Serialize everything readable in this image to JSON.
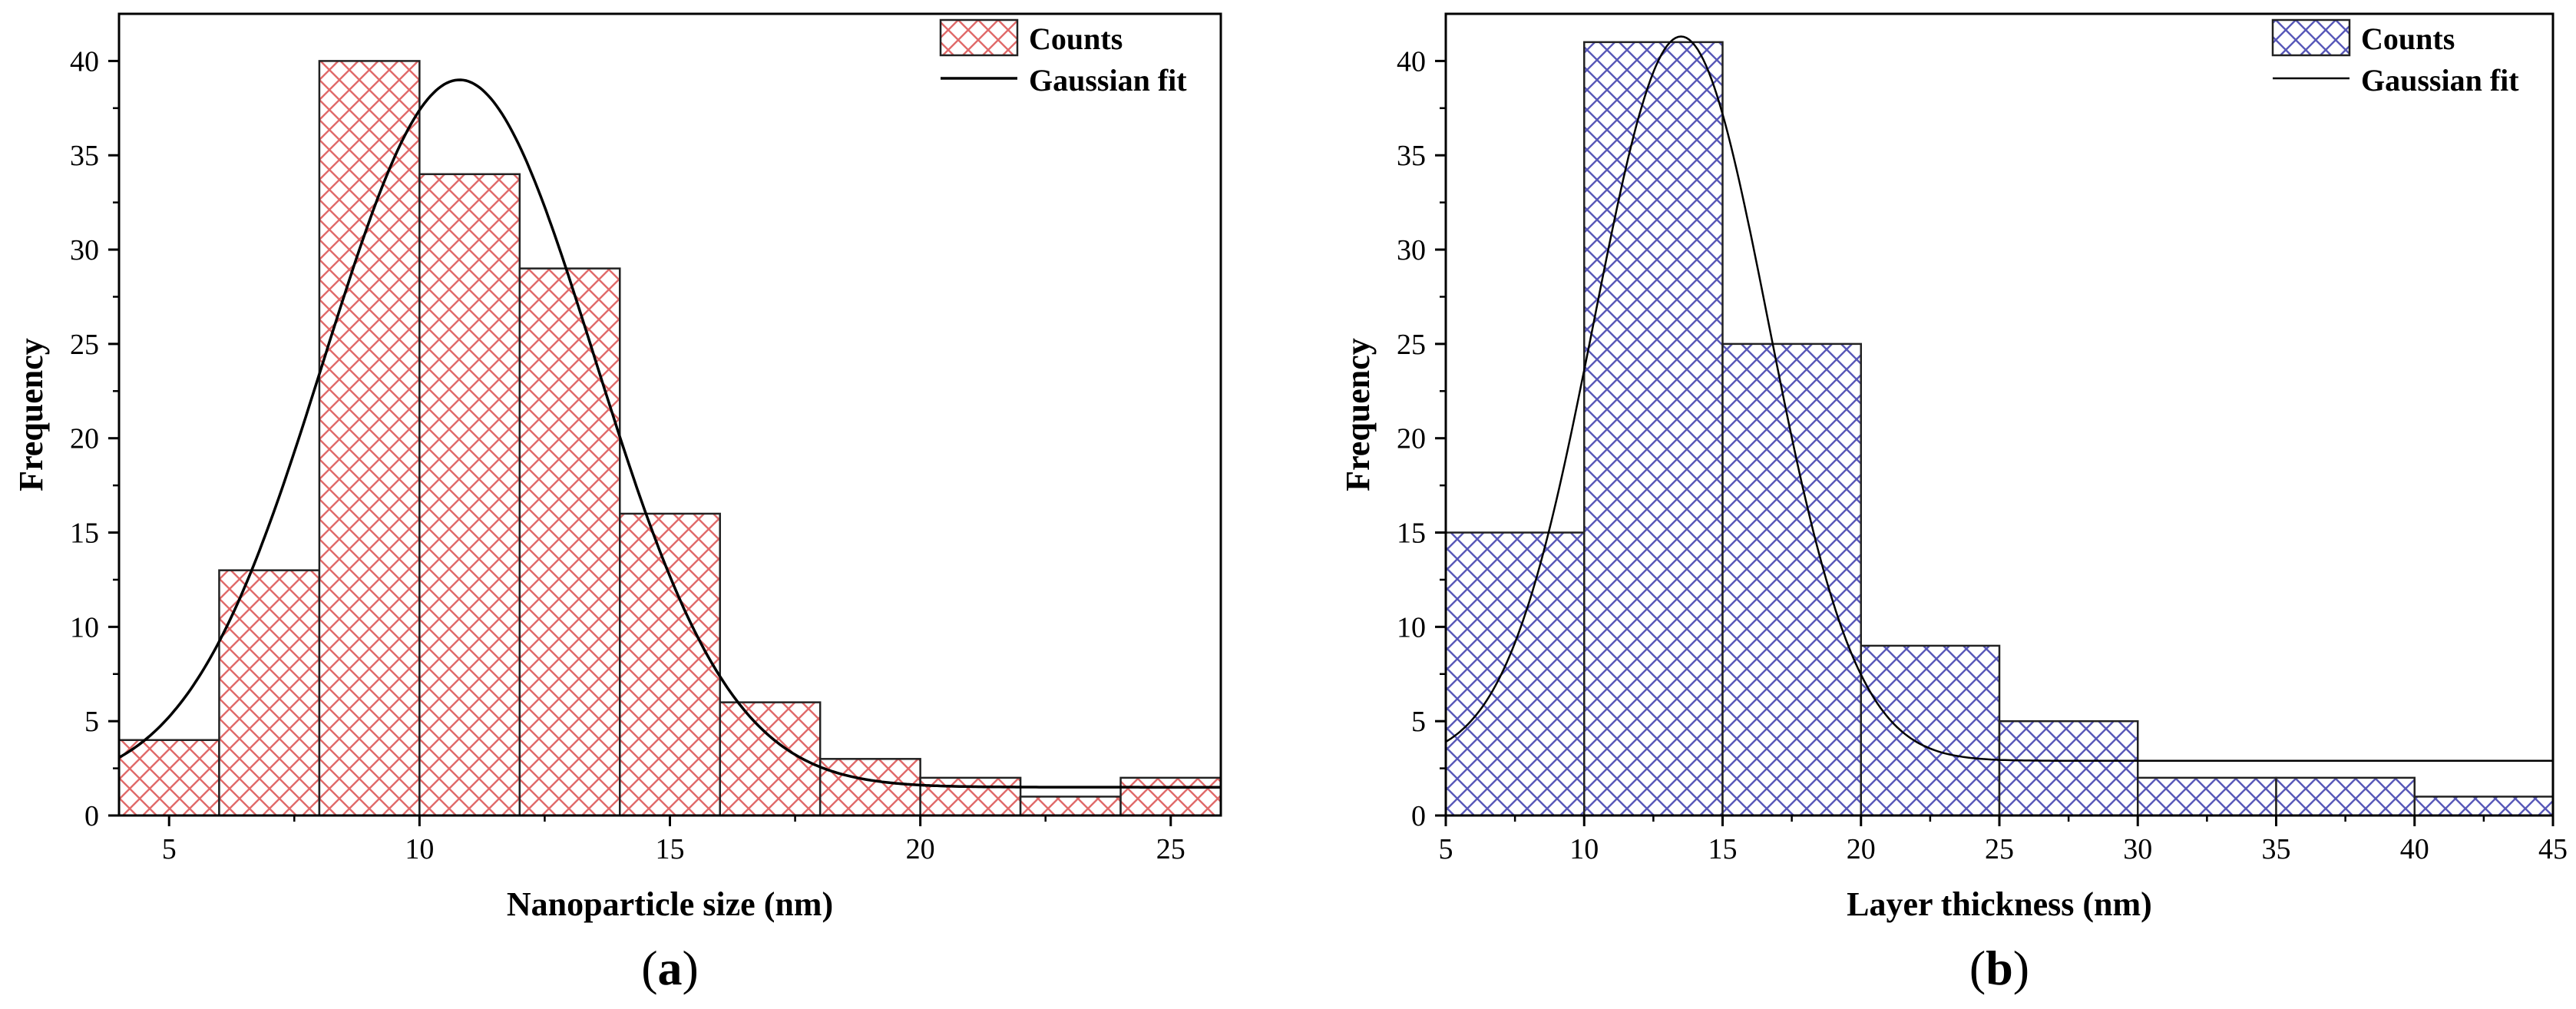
{
  "chart_data": [
    {
      "type": "bar",
      "panel_label": "a",
      "panel_open": "(",
      "panel_close": ")",
      "bin_edges": [
        4,
        6,
        8,
        10,
        12,
        14,
        16,
        18,
        20,
        22,
        24,
        26
      ],
      "values": [
        4,
        13,
        40,
        34,
        29,
        16,
        6,
        3,
        2,
        1,
        2
      ],
      "xlabel": "Nanoparticle size (nm)",
      "ylabel": "Frequency",
      "xlim": [
        4,
        26
      ],
      "ylim": [
        0,
        42.5
      ],
      "xticks": [
        5,
        10,
        15,
        20,
        25
      ],
      "yticks": [
        0,
        5,
        10,
        15,
        20,
        25,
        30,
        35,
        40
      ],
      "bar_color": "#e06a6a",
      "fit": {
        "type": "gaussian",
        "y0": 1.5,
        "A": 37.5,
        "xc": 10.8,
        "w": 2.7
      },
      "legend": {
        "counts": "Counts",
        "fit": "Gaussian fit",
        "placement": "top-right"
      }
    },
    {
      "type": "bar",
      "panel_label": "b",
      "panel_open": "(",
      "panel_close": ")",
      "bin_edges": [
        5,
        10,
        15,
        20,
        25,
        30,
        35,
        40,
        45
      ],
      "values": [
        15,
        41,
        25,
        9,
        5,
        2,
        2,
        1
      ],
      "xlabel": "Layer thickness (nm)",
      "ylabel": "Frequency",
      "xlim": [
        5,
        45
      ],
      "ylim": [
        0,
        42.5
      ],
      "xticks": [
        5,
        10,
        15,
        20,
        25,
        30,
        35,
        40,
        45
      ],
      "yticks": [
        0,
        5,
        10,
        15,
        20,
        25,
        30,
        35,
        40
      ],
      "bar_color": "#5858b8",
      "fit": {
        "type": "gaussian",
        "y0": 2.9,
        "A": 38.4,
        "xc": 13.5,
        "w": 3.15
      },
      "legend": {
        "counts": "Counts",
        "fit": "Gaussian fit",
        "placement": "top-right"
      }
    }
  ]
}
